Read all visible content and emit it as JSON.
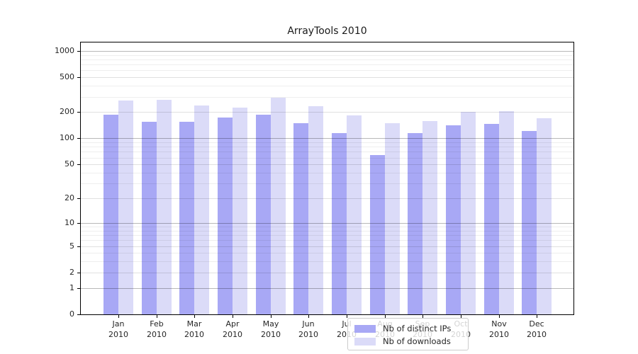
{
  "chart_data": {
    "type": "bar",
    "title": "ArrayTools 2010",
    "categories": [
      {
        "month": "Jan",
        "year": "2010"
      },
      {
        "month": "Feb",
        "year": "2010"
      },
      {
        "month": "Mar",
        "year": "2010"
      },
      {
        "month": "Apr",
        "year": "2010"
      },
      {
        "month": "May",
        "year": "2010"
      },
      {
        "month": "Jun",
        "year": "2010"
      },
      {
        "month": "Jul",
        "year": "2010"
      },
      {
        "month": "Aug",
        "year": "2010"
      },
      {
        "month": "Sep",
        "year": "2010"
      },
      {
        "month": "Oct",
        "year": "2010"
      },
      {
        "month": "Nov",
        "year": "2010"
      },
      {
        "month": "Dec",
        "year": "2010"
      }
    ],
    "series": [
      {
        "name": "Nb of distinct IPs",
        "color": "#a8a8f5",
        "values": [
          187,
          154,
          154,
          173,
          187,
          150,
          114,
          64,
          114,
          142,
          146,
          122
        ]
      },
      {
        "name": "Nb of downloads",
        "color": "#dbdbf8",
        "values": [
          270,
          278,
          238,
          226,
          290,
          233,
          182,
          149,
          158,
          202,
          205,
          170
        ]
      }
    ],
    "y_ticks": [
      0,
      1,
      2,
      5,
      10,
      20,
      50,
      100,
      200,
      500,
      1000
    ],
    "y_major_gridlines": [
      1,
      10,
      100,
      1000
    ],
    "y_minor_gridlines": [
      3,
      4,
      6,
      7,
      8,
      9,
      30,
      40,
      60,
      70,
      80,
      90,
      300,
      400,
      600,
      700,
      800,
      900
    ],
    "y_scale": "log10(value+1)",
    "ylim": [
      0,
      1250
    ],
    "xlabel": "",
    "ylabel": "",
    "grid": true,
    "legend_position": "inside-bottom-center"
  }
}
